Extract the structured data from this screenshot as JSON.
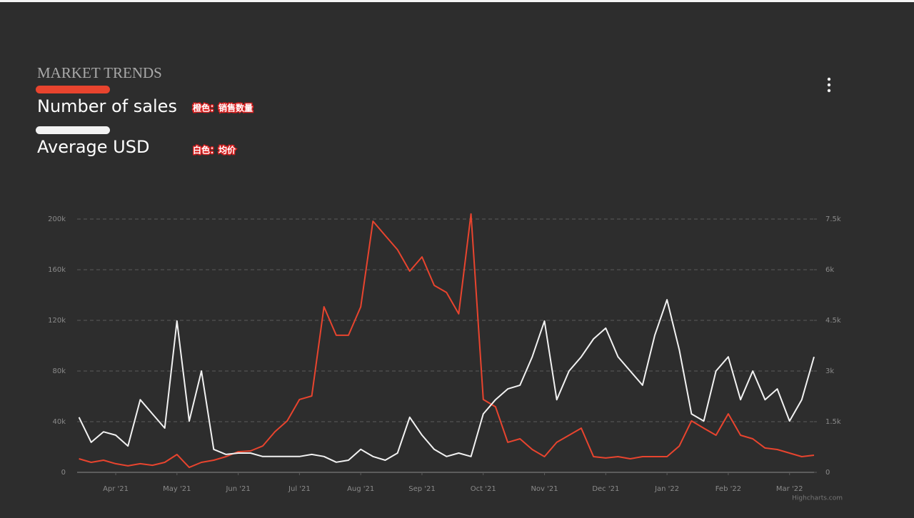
{
  "chart_data": {
    "type": "line",
    "title": "MARKET TRENDS",
    "annotations": [
      "橙色：销售数量",
      "白色：均价"
    ],
    "credits": "Highcharts.com",
    "x": [
      0.4,
      0.6,
      0.8,
      1.0,
      1.2,
      1.4,
      1.6,
      1.8,
      2.0,
      2.2,
      2.4,
      2.6,
      2.8,
      3.0,
      3.2,
      3.4,
      3.6,
      3.8,
      4.0,
      4.2,
      4.4,
      4.6,
      4.8,
      5.0,
      5.2,
      5.4,
      5.6,
      5.8,
      6.0,
      6.2,
      6.4,
      6.6,
      6.8,
      7.0,
      7.2,
      7.4,
      7.6,
      7.8,
      8.0,
      8.2,
      8.4,
      8.6,
      8.8,
      9.0,
      9.2,
      9.4,
      9.6,
      9.8,
      10.0,
      10.2,
      10.4,
      10.6,
      10.8,
      11.0,
      11.2,
      11.4,
      11.6,
      11.8,
      12.0,
      12.2,
      12.4
    ],
    "xlim": [
      0.37,
      12.4
    ],
    "xticks": [
      {
        "value": 1,
        "label": "Apr '21"
      },
      {
        "value": 2,
        "label": "May '21"
      },
      {
        "value": 3,
        "label": "Jun '21"
      },
      {
        "value": 4,
        "label": "Jul '21"
      },
      {
        "value": 5,
        "label": "Aug '21"
      },
      {
        "value": 6,
        "label": "Sep '21"
      },
      {
        "value": 7,
        "label": "Oct '21"
      },
      {
        "value": 8,
        "label": "Nov '21"
      },
      {
        "value": 9,
        "label": "Dec '21"
      },
      {
        "value": 10,
        "label": "Jan '22"
      },
      {
        "value": 11,
        "label": "Feb '22"
      },
      {
        "value": 12,
        "label": "Mar '22"
      }
    ],
    "ylim": [
      0,
      240000
    ],
    "yticks": [
      0,
      {
        "value": 40000,
        "label": "40k"
      },
      {
        "value": 80000,
        "label": "80k"
      },
      {
        "value": 120000,
        "label": "120k"
      },
      {
        "value": 160000,
        "label": "160k"
      },
      {
        "value": 200000,
        "label": "200k"
      }
    ],
    "y2lim": [
      0,
      9000
    ],
    "y2ticks": [
      0,
      {
        "value": 1500,
        "label": "1.5k"
      },
      {
        "value": 3000,
        "label": "3k"
      },
      {
        "value": 4500,
        "label": "4.5k"
      },
      {
        "value": 6000,
        "label": "6k"
      },
      {
        "value": 7500,
        "label": "7.5k"
      }
    ],
    "grid": true,
    "series": [
      {
        "name": "Number of sales",
        "color": "#e8442e",
        "values": [
          10700,
          7900,
          9600,
          6800,
          5100,
          6800,
          5600,
          7900,
          14100,
          3900,
          7900,
          9600,
          12400,
          16300,
          16900,
          20800,
          32100,
          40600,
          57500,
          60300,
          130700,
          108200,
          108200,
          130700,
          198300,
          187000,
          175800,
          158900,
          170100,
          147600,
          142000,
          125100,
          204000,
          57500,
          51800,
          23700,
          26500,
          18000,
          12400,
          23700,
          29300,
          34900,
          12400,
          11300,
          12400,
          10700,
          12400,
          12400,
          12400,
          20800,
          40600,
          34900,
          29300,
          46200,
          29300,
          26500,
          19200,
          18000,
          15200,
          12400,
          13500
        ]
      },
      {
        "name": "Average USD",
        "color": "#f2f2f2",
        "axis": "y2",
        "values": [
          1630,
          890,
          1200,
          1100,
          780,
          2150,
          1730,
          1310,
          4480,
          1520,
          3000,
          680,
          530,
          570,
          570,
          470,
          470,
          470,
          470,
          530,
          470,
          300,
          360,
          680,
          470,
          360,
          570,
          1630,
          1100,
          680,
          470,
          570,
          470,
          1730,
          2150,
          2470,
          2580,
          3420,
          4480,
          2150,
          3000,
          3420,
          3950,
          4270,
          3420,
          3000,
          2580,
          4060,
          5110,
          3630,
          1730,
          1520,
          3000,
          3420,
          2150,
          3000,
          2150,
          2470,
          1520,
          2150,
          3420
        ]
      }
    ]
  }
}
